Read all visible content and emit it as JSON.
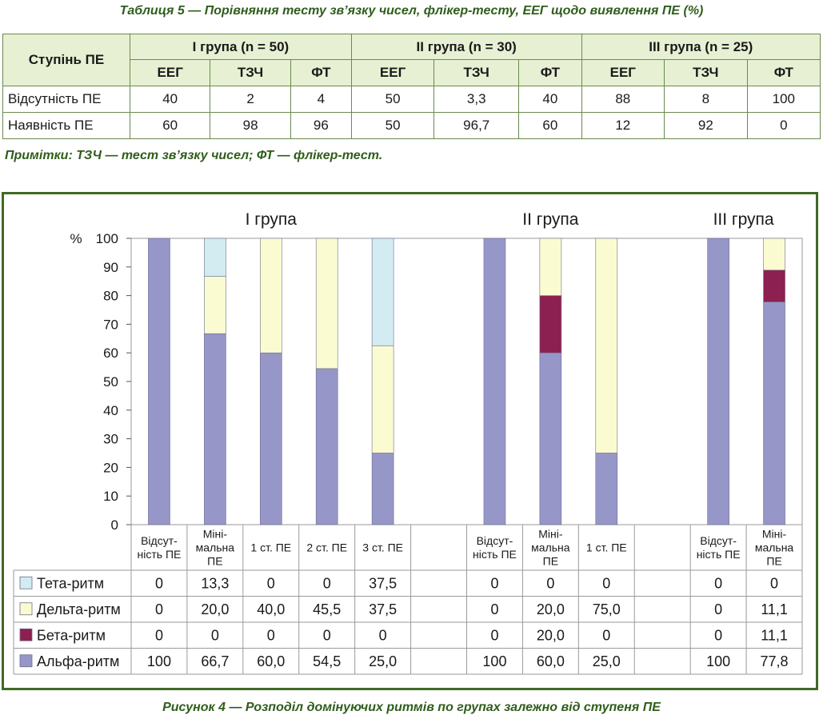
{
  "table": {
    "caption": "Таблиця 5 — Порівняння тесту зв’язку чисел, флікер-тесту, ЕЕГ щодо виявлення ПЕ (%)",
    "row_header": "Ступінь ПЕ",
    "groups": [
      "I група (n = 50)",
      "II група (n = 30)",
      "III група (n = 25)"
    ],
    "subcols": [
      "ЕЕГ",
      "ТЗЧ",
      "ФТ"
    ],
    "rows": [
      {
        "label": "Відсутність ПЕ",
        "cells": [
          "40",
          "2",
          "4",
          "50",
          "3,3",
          "40",
          "88",
          "8",
          "100"
        ]
      },
      {
        "label": "Наявність ПЕ",
        "cells": [
          "60",
          "98",
          "96",
          "50",
          "96,7",
          "60",
          "12",
          "92",
          "0"
        ]
      }
    ],
    "note": "Примітки: ТЗЧ — тест зв’язку чисел; ФТ — флікер-тест."
  },
  "figure_caption": "Рисунок 4 — Розподіл домінуючих ритмів по групах залежно від ступеня ПЕ",
  "chart_data": {
    "type": "bar",
    "stacked": true,
    "ylabel": "%",
    "ylim": [
      0,
      100
    ],
    "yticks": [
      0,
      10,
      20,
      30,
      40,
      50,
      60,
      70,
      80,
      90,
      100
    ],
    "grid": false,
    "group_titles": [
      "I група",
      "II група",
      "III група"
    ],
    "categories": [
      {
        "group": 0,
        "label": [
          "Відсут-",
          "ність ПЕ"
        ]
      },
      {
        "group": 0,
        "label": [
          "Міні-",
          "мальна",
          "ПЕ"
        ]
      },
      {
        "group": 0,
        "label": [
          "1 ст. ПЕ"
        ]
      },
      {
        "group": 0,
        "label": [
          "2 ст. ПЕ"
        ]
      },
      {
        "group": 0,
        "label": [
          "3 ст. ПЕ"
        ]
      },
      {
        "group": null,
        "label": []
      },
      {
        "group": 1,
        "label": [
          "Відсут-",
          "ність ПЕ"
        ]
      },
      {
        "group": 1,
        "label": [
          "Міні-",
          "мальна",
          "ПЕ"
        ]
      },
      {
        "group": 1,
        "label": [
          "1 ст. ПЕ"
        ]
      },
      {
        "group": null,
        "label": []
      },
      {
        "group": 2,
        "label": [
          "Відсут-",
          "ність ПЕ"
        ]
      },
      {
        "group": 2,
        "label": [
          "Міні-",
          "мальна",
          "ПЕ"
        ]
      }
    ],
    "series": [
      {
        "name": "Тета-ритм",
        "color": "#d2ecf1",
        "values": [
          0,
          13.3,
          0,
          0,
          37.5,
          null,
          0,
          0,
          0,
          null,
          0,
          0
        ],
        "labels": [
          "0",
          "13,3",
          "0",
          "0",
          "37,5",
          "",
          "0",
          "0",
          "0",
          "",
          "0",
          "0"
        ]
      },
      {
        "name": "Дельта-ритм",
        "color": "#fbfbd2",
        "values": [
          0,
          20.0,
          40.0,
          45.5,
          37.5,
          null,
          0,
          20.0,
          75.0,
          null,
          0,
          11.1
        ],
        "labels": [
          "0",
          "20,0",
          "40,0",
          "45,5",
          "37,5",
          "",
          "0",
          "20,0",
          "75,0",
          "",
          "0",
          "11,1"
        ]
      },
      {
        "name": "Бета-ритм",
        "color": "#8c2050",
        "values": [
          0,
          0,
          0,
          0,
          0,
          null,
          0,
          20.0,
          0,
          null,
          0,
          11.1
        ],
        "labels": [
          "0",
          "0",
          "0",
          "0",
          "0",
          "",
          "0",
          "20,0",
          "0",
          "",
          "0",
          "11,1"
        ]
      },
      {
        "name": "Альфа-ритм",
        "color": "#9696c8",
        "values": [
          100,
          66.7,
          60.0,
          54.5,
          25.0,
          null,
          100,
          60.0,
          25.0,
          null,
          100,
          77.8
        ],
        "labels": [
          "100",
          "66,7",
          "60,0",
          "54,5",
          "25,0",
          "",
          "100",
          "60,0",
          "25,0",
          "",
          "100",
          "77,8"
        ]
      }
    ],
    "stack_order_bottom_to_top": [
      "Альфа-ритм",
      "Бета-ритм",
      "Дельта-ритм",
      "Тета-ритм"
    ]
  }
}
